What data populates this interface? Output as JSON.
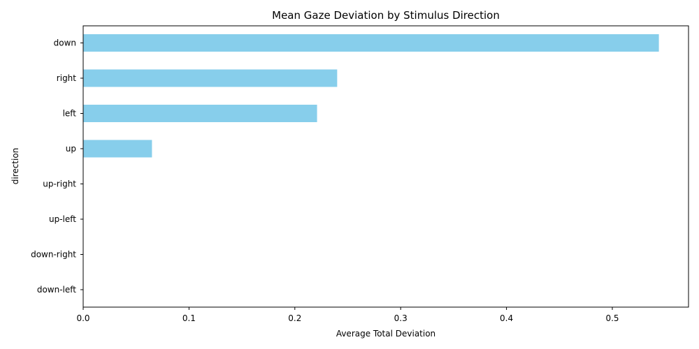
{
  "chart_data": {
    "type": "bar",
    "orientation": "horizontal",
    "title": "Mean Gaze Deviation by Stimulus Direction",
    "xlabel": "Average Total Deviation",
    "ylabel": "direction",
    "categories": [
      "down",
      "right",
      "left",
      "up",
      "up-right",
      "up-left",
      "down-right",
      "down-left"
    ],
    "values": [
      0.544,
      0.24,
      0.221,
      0.065,
      0,
      0,
      0,
      0
    ],
    "xlim": [
      0,
      0.572
    ],
    "xticks": [
      0.0,
      0.1,
      0.2,
      0.3,
      0.4,
      0.5
    ],
    "xtick_labels": [
      "0.0",
      "0.1",
      "0.2",
      "0.3",
      "0.4",
      "0.5"
    ],
    "bar_color": "#87ceeb",
    "grid": false,
    "legend": "none"
  }
}
